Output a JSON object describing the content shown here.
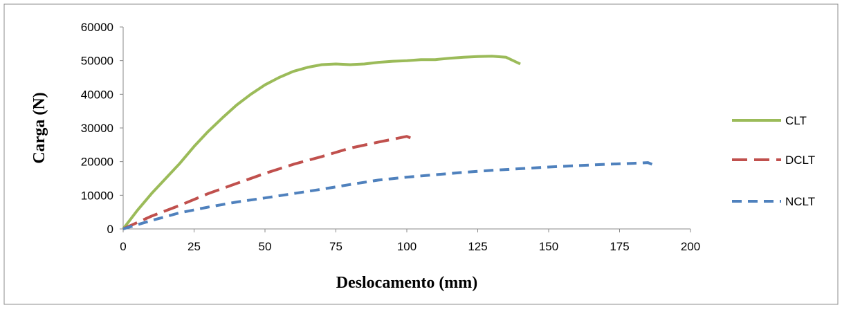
{
  "chart_data": {
    "type": "line",
    "title": "",
    "xlabel": "Deslocamento (mm)",
    "ylabel": "Carga (N)",
    "xlim": [
      0,
      200
    ],
    "ylim": [
      0,
      60000
    ],
    "x_ticks": [
      0,
      25,
      50,
      75,
      100,
      125,
      150,
      175,
      200
    ],
    "y_ticks": [
      0,
      10000,
      20000,
      30000,
      40000,
      50000,
      60000
    ],
    "grid": false,
    "legend_position": "right",
    "series": [
      {
        "name": "CLT",
        "color": "#9BBB59",
        "dash": "solid",
        "x": [
          0,
          5,
          10,
          15,
          20,
          25,
          30,
          35,
          40,
          45,
          50,
          55,
          60,
          65,
          70,
          75,
          80,
          85,
          90,
          95,
          100,
          105,
          110,
          115,
          120,
          125,
          130,
          135,
          140
        ],
        "y": [
          0,
          5500,
          10500,
          15000,
          19500,
          24500,
          29000,
          33000,
          36800,
          40000,
          42800,
          45000,
          46800,
          48000,
          48800,
          49000,
          48800,
          49000,
          49500,
          49800,
          50000,
          50300,
          50300,
          50700,
          51000,
          51200,
          51300,
          51000,
          49000
        ]
      },
      {
        "name": "DCLT",
        "color": "#C0504D",
        "dash": "long-dash",
        "x": [
          0,
          10,
          20,
          30,
          40,
          50,
          60,
          70,
          80,
          90,
          100,
          102
        ],
        "y": [
          0,
          3800,
          7000,
          10500,
          13500,
          16500,
          19200,
          21500,
          24000,
          25800,
          27500,
          26800
        ]
      },
      {
        "name": "NCLT",
        "color": "#4F81BD",
        "dash": "dash",
        "x": [
          0,
          10,
          20,
          30,
          40,
          50,
          60,
          70,
          80,
          90,
          100,
          110,
          120,
          130,
          140,
          150,
          160,
          170,
          180,
          185,
          187
        ],
        "y": [
          0,
          2500,
          4800,
          6500,
          8000,
          9200,
          10500,
          11800,
          13200,
          14500,
          15400,
          16100,
          16800,
          17400,
          17900,
          18400,
          18800,
          19200,
          19500,
          19700,
          19000
        ]
      }
    ]
  }
}
